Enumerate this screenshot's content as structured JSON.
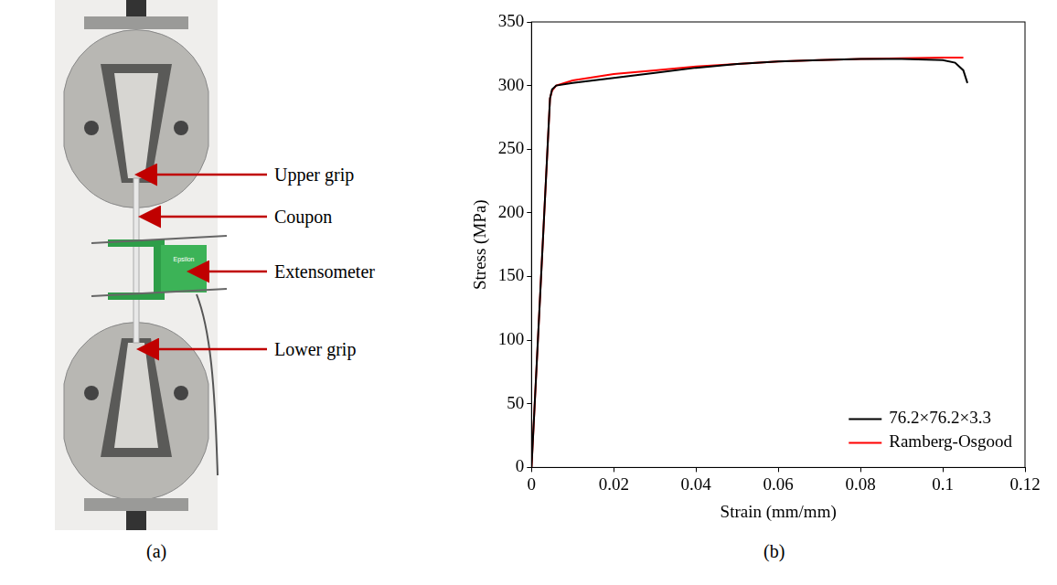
{
  "panel_a": {
    "caption": "(a)",
    "extensometer_brand": "Epsilon",
    "labels": [
      "Upper grip",
      "Coupon",
      "Extensometer",
      "Lower grip"
    ]
  },
  "chart_data": {
    "type": "line",
    "caption": "(b)",
    "x_label": "Strain (mm/mm)",
    "y_label": "Stress (MPa)",
    "xlim": [
      0,
      0.12
    ],
    "xticks": [
      0,
      0.02,
      0.04,
      0.06,
      0.08,
      0.1,
      0.12
    ],
    "ylim": [
      0,
      350
    ],
    "yticks": [
      0,
      50,
      100,
      150,
      200,
      250,
      300,
      350
    ],
    "grid": false,
    "legend": "lower right",
    "series": [
      {
        "name": "76.2×76.2×3.3",
        "color": "#000000",
        "x": [
          0,
          0.0045,
          0.005,
          0.006,
          0.01,
          0.02,
          0.03,
          0.04,
          0.05,
          0.06,
          0.07,
          0.08,
          0.09,
          0.1,
          0.103,
          0.105,
          0.106
        ],
        "values": [
          0,
          290,
          297,
          300,
          302,
          306,
          310,
          314,
          317,
          319,
          320,
          321,
          321,
          320,
          318,
          312,
          302
        ]
      },
      {
        "name": "Ramberg-Osgood",
        "color": "#ff0000",
        "x": [
          0,
          0.0045,
          0.005,
          0.006,
          0.01,
          0.02,
          0.03,
          0.04,
          0.05,
          0.06,
          0.07,
          0.08,
          0.09,
          0.1,
          0.105
        ],
        "values": [
          0,
          290,
          296,
          300,
          304,
          309,
          312,
          315,
          317,
          319,
          320,
          321,
          321.5,
          322,
          322
        ]
      }
    ]
  }
}
